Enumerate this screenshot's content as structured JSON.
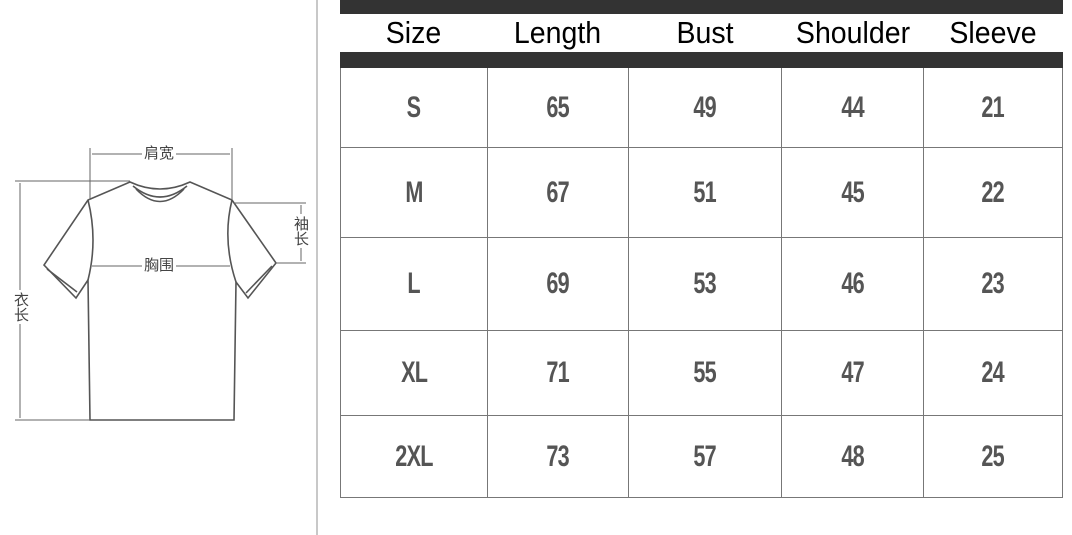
{
  "diagram": {
    "labels": {
      "shoulder": "肩宽",
      "bust": "胸围",
      "sleeve": "袖长",
      "length": "衣长"
    }
  },
  "table": {
    "headers": [
      "Size",
      "Length",
      "Bust",
      "Shoulder",
      "Sleeve"
    ],
    "rows": [
      [
        "S",
        "65",
        "49",
        "44",
        "21"
      ],
      [
        "M",
        "67",
        "51",
        "45",
        "22"
      ],
      [
        "L",
        "69",
        "53",
        "46",
        "23"
      ],
      [
        "XL",
        "71",
        "55",
        "47",
        "24"
      ],
      [
        "2XL",
        "73",
        "57",
        "48",
        "25"
      ]
    ]
  }
}
